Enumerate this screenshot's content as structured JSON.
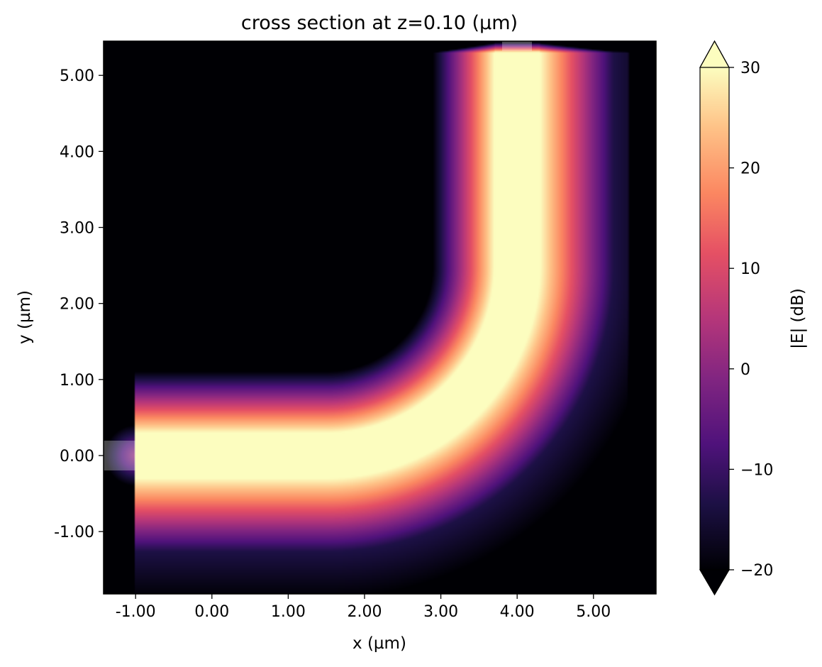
{
  "chart_data": {
    "type": "heatmap",
    "title": "cross section at z=0.10 (µm)",
    "xlabel": "x (µm)",
    "ylabel": "y (µm)",
    "xlim": [
      -1.42,
      5.82
    ],
    "ylim": [
      -1.82,
      5.45
    ],
    "x_ticks": [
      -1.0,
      0.0,
      1.0,
      2.0,
      3.0,
      4.0,
      5.0
    ],
    "x_tick_labels": [
      "-1.00",
      "0.00",
      "1.00",
      "2.00",
      "3.00",
      "4.00",
      "5.00"
    ],
    "y_ticks": [
      -1.0,
      0.0,
      1.0,
      2.0,
      3.0,
      4.0,
      5.0
    ],
    "y_tick_labels": [
      "-1.00",
      "0.00",
      "1.00",
      "2.00",
      "3.00",
      "4.00",
      "5.00"
    ],
    "colorbar": {
      "label": "|E| (dB)",
      "colormap": "magma",
      "min": -20,
      "max": 30,
      "extend": "both",
      "ticks": [
        30,
        20,
        10,
        0,
        -10,
        -20
      ],
      "tick_labels": [
        "30",
        "20",
        "10",
        "0",
        "−10",
        "−20"
      ]
    },
    "field": {
      "description_units": "dB",
      "waveguide_center_y": 0.0,
      "horizontal_segment_x": [
        -1.0,
        1.5
      ],
      "bend_center": [
        1.5,
        2.5
      ],
      "bend_radius": 2.5,
      "vertical_segment_y": [
        2.5,
        5.3
      ],
      "core_halfwidth": 0.3,
      "port_in": {
        "x": -1.0,
        "y": 0.0
      },
      "port_out": {
        "x": 4.0,
        "y": 5.3
      }
    },
    "grid": false,
    "legend": "none"
  },
  "colors": {
    "background": "#ffffff",
    "axes_edge": "#000000",
    "magma_low": "#000004",
    "magma_high": "#fcfdbf"
  }
}
